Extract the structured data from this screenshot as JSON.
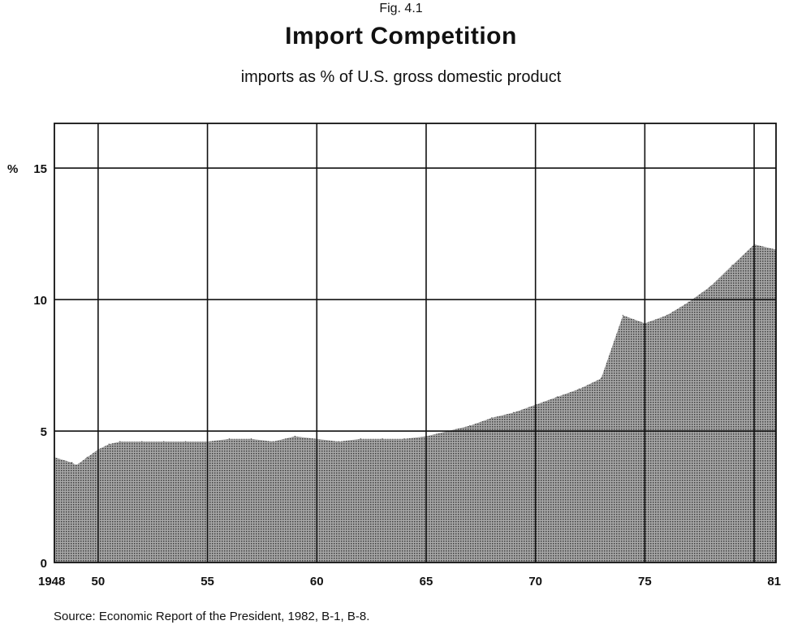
{
  "figure": {
    "label": "Fig. 4.1",
    "title": "Import Competition",
    "subtitle": "imports as % of U.S. gross domestic product",
    "source": "Source: Economic Report of the President, 1982, B-1, B-8."
  },
  "colors": {
    "fill": "#8c8c8c",
    "ink": "#111111",
    "background": "#ffffff"
  },
  "chart_data": {
    "type": "area",
    "title": "Import Competition",
    "subtitle": "imports as % of U.S. gross domestic product",
    "xlabel": "",
    "ylabel": "%",
    "x_range": [
      1948,
      1981
    ],
    "ylim": [
      0,
      16.7
    ],
    "x_ticks": [
      {
        "value": 1948,
        "label": "1948"
      },
      {
        "value": 1950,
        "label": "50"
      },
      {
        "value": 1955,
        "label": "55"
      },
      {
        "value": 1960,
        "label": "60"
      },
      {
        "value": 1965,
        "label": "65"
      },
      {
        "value": 1970,
        "label": "70"
      },
      {
        "value": 1975,
        "label": "75"
      },
      {
        "value": 1981,
        "label": "81"
      }
    ],
    "y_ticks": [
      {
        "value": 0,
        "label": "0"
      },
      {
        "value": 5,
        "label": "5"
      },
      {
        "value": 10,
        "label": "10"
      },
      {
        "value": 15,
        "label": "15"
      }
    ],
    "y_unit_label": "%",
    "vertical_gridlines": [
      1950,
      1955,
      1960,
      1965,
      1970,
      1975,
      1980
    ],
    "horizontal_gridlines": [
      5,
      10,
      15
    ],
    "grid": true,
    "legend": "none",
    "series": [
      {
        "values": [
          [
            1948,
            4.0
          ],
          [
            1948.8,
            3.8
          ],
          [
            1949,
            3.7
          ],
          [
            1949.5,
            4.0
          ],
          [
            1950,
            4.3
          ],
          [
            1950.5,
            4.5
          ],
          [
            1951,
            4.6
          ],
          [
            1952,
            4.6
          ],
          [
            1953,
            4.6
          ],
          [
            1954,
            4.6
          ],
          [
            1955,
            4.6
          ],
          [
            1956,
            4.7
          ],
          [
            1957,
            4.7
          ],
          [
            1958,
            4.6
          ],
          [
            1959,
            4.8
          ],
          [
            1960,
            4.7
          ],
          [
            1961,
            4.6
          ],
          [
            1962,
            4.7
          ],
          [
            1963,
            4.7
          ],
          [
            1964,
            4.7
          ],
          [
            1965,
            4.8
          ],
          [
            1966,
            5.0
          ],
          [
            1967,
            5.2
          ],
          [
            1968,
            5.5
          ],
          [
            1969,
            5.7
          ],
          [
            1970,
            6.0
          ],
          [
            1971,
            6.3
          ],
          [
            1972,
            6.6
          ],
          [
            1973,
            7.0
          ],
          [
            1974,
            9.4
          ],
          [
            1975,
            9.1
          ],
          [
            1976,
            9.4
          ],
          [
            1977,
            9.9
          ],
          [
            1978,
            10.5
          ],
          [
            1979,
            11.3
          ],
          [
            1980,
            12.1
          ],
          [
            1981,
            11.9
          ]
        ]
      }
    ]
  }
}
